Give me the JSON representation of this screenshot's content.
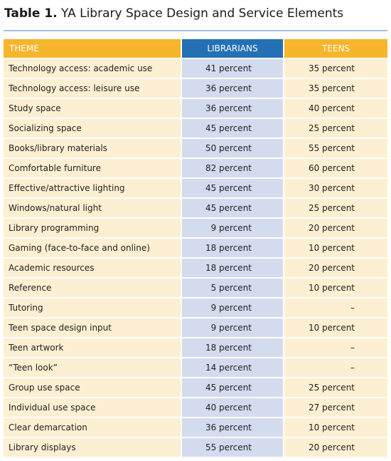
{
  "title": {
    "label": "Table 1.",
    "text": "YA Library Space Design and Service Elements"
  },
  "table": {
    "header": [
      "THEME",
      "LIBRARIANS",
      "TEENS"
    ],
    "rows": [
      [
        "Technology access: academic use",
        "41 percent",
        "35 percent"
      ],
      [
        "Technology access: leisure use",
        "36 percent",
        "35 percent"
      ],
      [
        "Study space",
        "36 percent",
        "40 percent"
      ],
      [
        "Socializing space",
        "45 percent",
        "25 percent"
      ],
      [
        "Books/library materials",
        "50 percent",
        "55 percent"
      ],
      [
        "Comfortable furniture",
        "82 percent",
        "60 percent"
      ],
      [
        "Effective/attractive lighting",
        "45 percent",
        "30 percent"
      ],
      [
        "Windows/natural light",
        "45 percent",
        "25 percent"
      ],
      [
        "Library programming",
        "9 percent",
        "20 percent"
      ],
      [
        "Gaming (face-to-face and online)",
        "18 percent",
        "10 percent"
      ],
      [
        "Academic resources",
        "18 percent",
        "20 percent"
      ],
      [
        "Reference",
        "5 percent",
        "10 percent"
      ],
      [
        "Tutoring",
        "9 percent",
        "–"
      ],
      [
        "Teen space design input",
        "9 percent",
        "10 percent"
      ],
      [
        "Teen artwork",
        "18 percent",
        "–"
      ],
      [
        "“Teen look”",
        "14 percent",
        "–"
      ],
      [
        "Group use space",
        "45 percent",
        "25 percent"
      ],
      [
        "Individual use space",
        "40 percent",
        "27 percent"
      ],
      [
        "Clear demarcation",
        "36 percent",
        "10 percent"
      ],
      [
        "Library displays",
        "55 percent",
        "20 percent"
      ]
    ]
  }
}
